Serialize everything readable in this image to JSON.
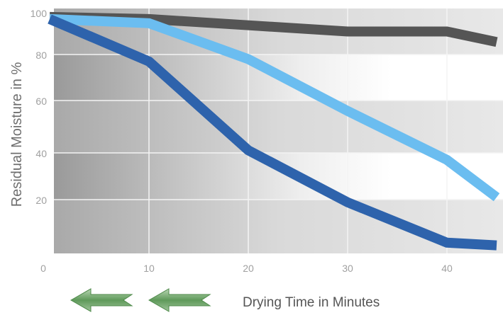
{
  "chart_data": {
    "type": "line",
    "xlabel": "Drying Time in Minutes",
    "ylabel": "Residual Moisture in %",
    "xlim": [
      0,
      45
    ],
    "ylim": [
      0,
      100
    ],
    "x_ticks": [
      "0",
      "10",
      "20",
      "30",
      "40"
    ],
    "y_ticks": [
      "20",
      "40",
      "60",
      "80",
      "100"
    ],
    "grid": true,
    "series": [
      {
        "color": "#555555",
        "x": [
          0,
          10,
          20,
          30,
          40,
          45
        ],
        "y": [
          98,
          97,
          94,
          91,
          91,
          86
        ]
      },
      {
        "color": "#6bbdf0",
        "x": [
          0,
          10,
          20,
          30,
          40,
          45
        ],
        "y": [
          97,
          95,
          78,
          56,
          37,
          21
        ]
      },
      {
        "color": "#2e63ac",
        "x": [
          0,
          10,
          20,
          30,
          40,
          45
        ],
        "y": [
          97,
          77,
          41,
          19,
          4,
          3
        ]
      }
    ]
  },
  "decor": {
    "arrow_icon": "green-left-arrow-icon",
    "arrow_color": "#6ea36a"
  }
}
